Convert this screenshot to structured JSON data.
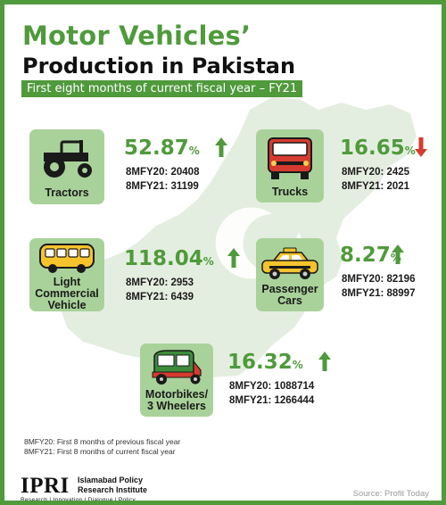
{
  "title": {
    "line1": "Motor Vehicles’",
    "line2": "Production in Pakistan",
    "subtitle": "First eight months of current fiscal year – FY21"
  },
  "colors": {
    "brand_green": "#4f9a3b",
    "card_green": "#a9d29a",
    "map_green": "#e4eee0",
    "up_arrow": "#4f9a3b",
    "down_arrow": "#d63b2f"
  },
  "vehicles": {
    "tractors": {
      "label": "Tractors",
      "percent": "52.87",
      "percent_sign": "%",
      "direction": "up",
      "icon": "tractor-icon",
      "fy20": "8MFY20: 20408",
      "fy21": "8MFY21: 31199"
    },
    "trucks": {
      "label": "Trucks",
      "percent": "16.65",
      "percent_sign": "%",
      "direction": "down",
      "icon": "truck-icon",
      "fy20": "8MFY20: 2425",
      "fy21": "8MFY21: 2021"
    },
    "lcv": {
      "label_line1": "Light",
      "label_line2": "Commercial",
      "label_line3": "Vehicle",
      "percent": "118.04",
      "percent_sign": "%",
      "direction": "up",
      "icon": "bus-icon",
      "fy20": "8MFY20: 2953",
      "fy21": "8MFY21: 6439"
    },
    "cars": {
      "label_line1": "Passenger",
      "label_line2": "Cars",
      "percent": "8.27",
      "percent_sign": "%",
      "direction": "up",
      "icon": "taxi-icon",
      "fy20": "8MFY20: 82196",
      "fy21": "8MFY21: 88997"
    },
    "bikes": {
      "label_line1": "Motorbikes/",
      "label_line2": "3 Wheelers",
      "percent": "16.32",
      "percent_sign": "%",
      "direction": "up",
      "icon": "rickshaw-icon",
      "fy20": "8MFY20: 1088714",
      "fy21": "8MFY21: 1266444"
    }
  },
  "footnotes": {
    "note1": "8MFY20: First 8 months of previous fiscal year",
    "note2": "8MFY21: First 8 months of current fiscal year"
  },
  "logo": {
    "acronym": "IPRI",
    "name_line1": "Islamabad Policy",
    "name_line2": "Research Institute",
    "tagline": "Research | Innovation | Dialogue | Policy"
  },
  "source": "Source: Profit Today"
}
